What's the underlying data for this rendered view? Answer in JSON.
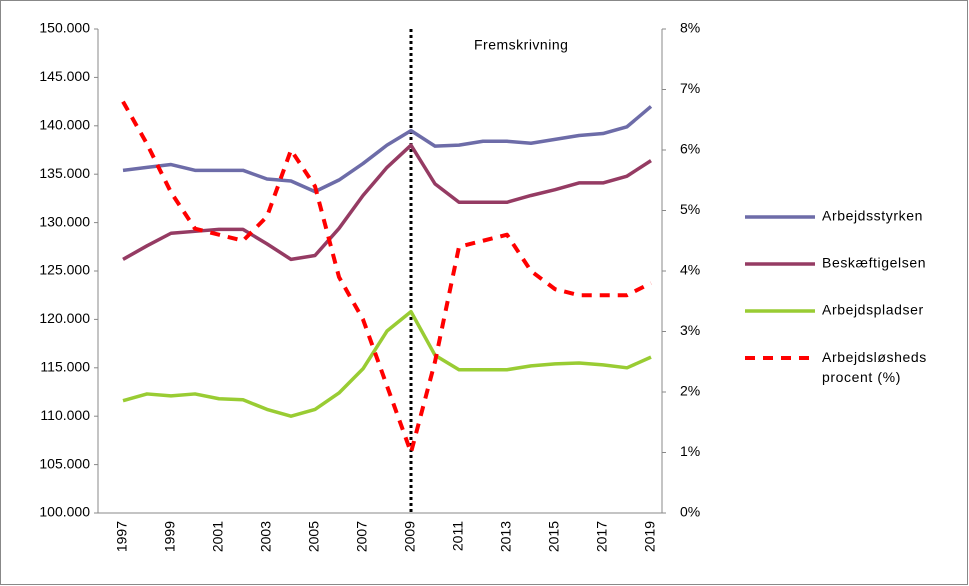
{
  "chart_data": {
    "type": "line",
    "categories": [
      "1997",
      null,
      "1999",
      null,
      "2001",
      null,
      "2003",
      null,
      "2005",
      null,
      "2007",
      null,
      "2009",
      null,
      "2011",
      null,
      "2013",
      null,
      "2015",
      null,
      "2017",
      null,
      "2019"
    ],
    "series": [
      {
        "name": "Arbejdsstyrken",
        "color": "#6d6ca8",
        "values": [
          135400,
          135700,
          136000,
          135400,
          135400,
          135400,
          134500,
          134300,
          133200,
          134400,
          136100,
          138000,
          139500,
          137900,
          138000,
          138400,
          138400,
          138200,
          138600,
          139000,
          139200,
          139900,
          142000
        ]
      },
      {
        "name": "Beskæftigelsen",
        "color": "#953b63",
        "values": [
          126200,
          127600,
          128900,
          129100,
          129300,
          129300,
          127800,
          126200,
          126600,
          129400,
          132800,
          135700,
          138000,
          134000,
          132100,
          132100,
          132100,
          132800,
          133400,
          134100,
          134100,
          134800,
          136400
        ]
      },
      {
        "name": "Arbejdspladser",
        "color": "#99cc33",
        "values": [
          111600,
          112300,
          112100,
          112300,
          111800,
          111700,
          110700,
          110000,
          110700,
          112400,
          114900,
          118800,
          120800,
          116300,
          114800,
          114800,
          114800,
          115200,
          115400,
          115500,
          115300,
          115000,
          116100
        ]
      },
      {
        "name": "Arbejdsløsheds procent (%)",
        "color": "#ff0000",
        "dashed": true,
        "axis": "y2",
        "values": [
          6.8,
          6.1,
          5.3,
          4.7,
          4.6,
          4.5,
          4.9,
          6.0,
          5.4,
          3.9,
          3.2,
          2.1,
          1.0,
          2.5,
          4.4,
          4.5,
          4.6,
          4.0,
          3.7,
          3.6,
          3.6,
          3.6,
          3.8
        ]
      }
    ],
    "ylim": [
      100000,
      150000
    ],
    "yticks": [
      {
        "value": 100000,
        "label": "100.000"
      },
      {
        "value": 105000,
        "label": "105.000"
      },
      {
        "value": 110000,
        "label": "110.000"
      },
      {
        "value": 115000,
        "label": "115.000"
      },
      {
        "value": 120000,
        "label": "120.000"
      },
      {
        "value": 125000,
        "label": "125.000"
      },
      {
        "value": 130000,
        "label": "130.000"
      },
      {
        "value": 135000,
        "label": "135.000"
      },
      {
        "value": 140000,
        "label": "140.000"
      },
      {
        "value": 145000,
        "label": "145.000"
      },
      {
        "value": 150000,
        "label": "150.000"
      }
    ],
    "y2lim": [
      0,
      8
    ],
    "y2ticks": [
      {
        "value": 0,
        "label": "0%"
      },
      {
        "value": 1,
        "label": "1%"
      },
      {
        "value": 2,
        "label": "2%"
      },
      {
        "value": 3,
        "label": "3%"
      },
      {
        "value": 4,
        "label": "4%"
      },
      {
        "value": 5,
        "label": "5%"
      },
      {
        "value": 6,
        "label": "6%"
      },
      {
        "value": 7,
        "label": "7%"
      },
      {
        "value": 8,
        "label": "8%"
      }
    ],
    "annotation": {
      "text": "Fremskrivning",
      "x": "2009"
    },
    "legend": "right"
  }
}
